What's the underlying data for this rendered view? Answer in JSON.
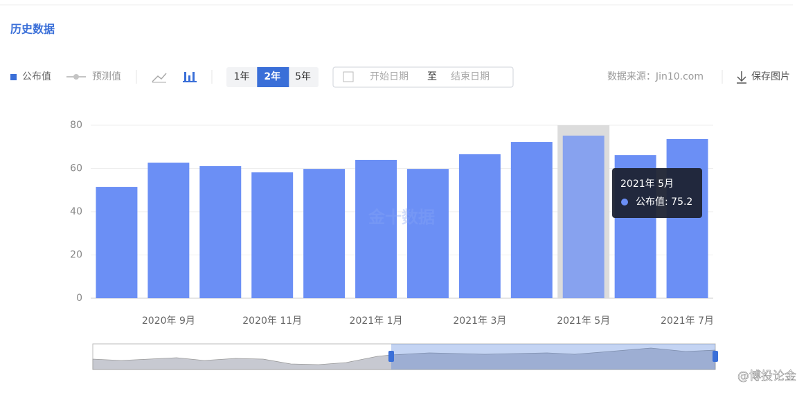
{
  "ui": {
    "section_title": "历史数据",
    "ranges": [
      "1年",
      "2年",
      "5年"
    ],
    "active_range": 1,
    "date_start": "开始日期",
    "date_to": "至",
    "date_end": "结束日期",
    "source": "数据来源：Jin10.com",
    "save": "保存图片",
    "watermark": "金十数据",
    "corner_mark": "@博投论金"
  },
  "chart_data": {
    "type": "bar",
    "categories": [
      null,
      "2020年 9月",
      null,
      "2020年 11月",
      null,
      "2021年 1月",
      null,
      "2021年 3月",
      null,
      "2021年 5月",
      null,
      "2021年 7月"
    ],
    "series": [
      {
        "name": "公布值",
        "color": "#6b8ff5",
        "values": [
          51.5,
          62.7,
          61.1,
          58.2,
          59.8,
          64.0,
          59.8,
          66.6,
          72.3,
          75.2,
          66.2,
          73.6
        ]
      },
      {
        "name": "预测值",
        "color": "#c4c4c4",
        "values": [
          null,
          null,
          null,
          null,
          null,
          null,
          null,
          null,
          null,
          null,
          null,
          null
        ]
      }
    ],
    "ylim": [
      0,
      80
    ],
    "yticks": [
      0,
      20,
      40,
      60,
      80
    ],
    "grid": true,
    "highlight": 9,
    "tooltip": "公布值: 75.2"
  }
}
